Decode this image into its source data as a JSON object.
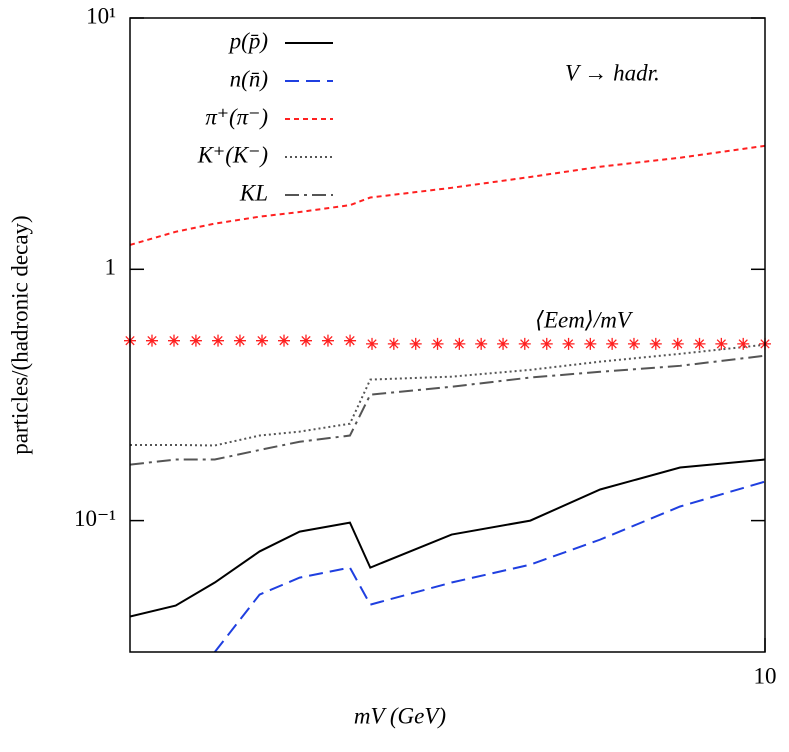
{
  "chart_data": {
    "type": "line",
    "xlabel": "mV (GeV)",
    "ylabel": "particles/(hadronic decay)",
    "xscale": "log",
    "yscale": "log",
    "xlim": [
      1,
      10
    ],
    "ylim": [
      0.03,
      10
    ],
    "xticks": [
      10
    ],
    "yticks": [
      {
        "value": 10,
        "label": "10¹"
      },
      1,
      {
        "value": 0.1,
        "label": "10⁻¹"
      }
    ],
    "annotations": [
      "V → hadr.",
      "⟨Eem⟩/mV"
    ],
    "x": [
      1,
      1.18,
      1.36,
      1.6,
      1.85,
      2.22,
      2.39,
      3.21,
      4.27,
      5.5,
      7.35,
      10
    ],
    "series": [
      {
        "name": "p(p̄)",
        "color": "#000000",
        "dash": "solid",
        "values": [
          0.0415,
          0.0459,
          0.0567,
          0.0754,
          0.0904,
          0.0982,
          0.065,
          0.088,
          0.1,
          0.133,
          0.1626,
          0.175
        ]
      },
      {
        "name": "n(n̄)",
        "color": "#1f3fe0",
        "dash": "dashed",
        "values": [
          null,
          null,
          0.03,
          0.0508,
          0.0593,
          0.065,
          0.0463,
          0.0567,
          0.0668,
          0.084,
          0.1138,
          0.143
        ]
      },
      {
        "name": "π⁺(π⁻)",
        "color": "#ff2020",
        "dash": "short",
        "values": [
          1.25,
          1.41,
          1.52,
          1.62,
          1.69,
          1.8,
          1.93,
          2.11,
          2.33,
          2.56,
          2.78,
          3.1
        ]
      },
      {
        "name": "K⁺(K⁻)",
        "color": "#555555",
        "dash": "dotted",
        "values": [
          0.2,
          0.2,
          0.199,
          0.218,
          0.226,
          0.243,
          0.364,
          0.374,
          0.398,
          0.429,
          0.461,
          0.501
        ]
      },
      {
        "name": "KL",
        "color": "#555555",
        "dash": "dashdot",
        "values": [
          0.167,
          0.175,
          0.175,
          0.191,
          0.206,
          0.218,
          0.317,
          0.341,
          0.371,
          0.391,
          0.413,
          0.453
        ]
      },
      {
        "color": "#ff2020",
        "marker": "star",
        "x": [
          1,
          1.083,
          1.173,
          1.27,
          1.376,
          1.49,
          1.614,
          1.748,
          1.893,
          2.05,
          2.221,
          2.405,
          2.603,
          2.818,
          3.05,
          3.301,
          3.573,
          3.868,
          4.185,
          4.532,
          4.905,
          5.308,
          5.745,
          6.218,
          6.73,
          7.288,
          7.886,
          8.536,
          9.241,
          10
        ],
        "values": [
          0.52,
          0.52,
          0.52,
          0.52,
          0.52,
          0.52,
          0.52,
          0.52,
          0.52,
          0.52,
          0.52,
          0.505,
          0.505,
          0.505,
          0.505,
          0.505,
          0.505,
          0.505,
          0.505,
          0.505,
          0.505,
          0.505,
          0.505,
          0.505,
          0.505,
          0.505,
          0.505,
          0.505,
          0.505,
          0.505
        ]
      }
    ]
  }
}
